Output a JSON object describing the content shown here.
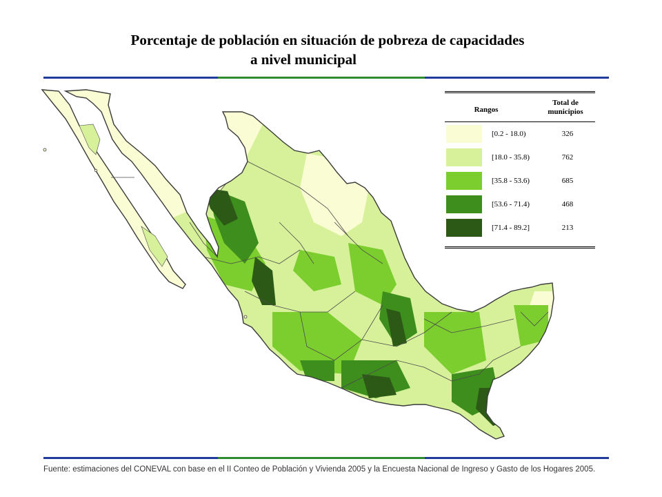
{
  "title": {
    "line1": "Porcentaje de población en situación de pobreza de capacidades",
    "line2": "a nivel municipal"
  },
  "colors": {
    "rule_blue": "#1f3b9c",
    "rule_green": "#2e8b2e",
    "border": "#3a3a3a",
    "class1": "#fafcd3",
    "class2": "#d6f19a",
    "class3": "#7cce2e",
    "class4": "#3e8e1e",
    "class5": "#2c5a16"
  },
  "legend": {
    "header_range": "Rangos",
    "header_count": "Total de municipios",
    "rows": [
      {
        "range": "[0.2 - 18.0)",
        "count": "326"
      },
      {
        "range": "[18.0 - 35.8)",
        "count": "762"
      },
      {
        "range": "[35.8 - 53.6)",
        "count": "685"
      },
      {
        "range": "[53.6 - 71.4)",
        "count": "468"
      },
      {
        "range": "[71.4 - 89.2]",
        "count": "213"
      }
    ]
  },
  "source": "Fuente: estimaciones del CONEVAL con base en el II Conteo de Población y Vivienda 2005 y la Encuesta Nacional de Ingreso y Gasto de los Hogares 2005."
}
